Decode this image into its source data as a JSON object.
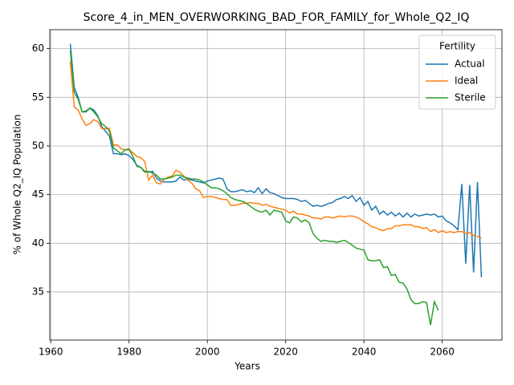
{
  "chart_data": {
    "type": "line",
    "title": "Score_4_in_MEN_OVERWORKING_BAD_FOR_FAMILY_for_Whole_Q2_IQ",
    "xlabel": "Years",
    "ylabel": "% of Whole Q2_IQ Population",
    "legend_title": "Fertility",
    "legend_position": "upper right",
    "grid": true,
    "xlim": [
      1959.75,
      2075.25
    ],
    "ylim": [
      30.05,
      61.95
    ],
    "xticks": [
      1960,
      1980,
      2000,
      2020,
      2040,
      2060
    ],
    "yticks": [
      35,
      40,
      45,
      50,
      55,
      60
    ],
    "x": [
      1965,
      1966,
      1967,
      1968,
      1969,
      1970,
      1971,
      1972,
      1973,
      1974,
      1975,
      1976,
      1977,
      1978,
      1979,
      1980,
      1981,
      1982,
      1983,
      1984,
      1985,
      1986,
      1987,
      1988,
      1989,
      1990,
      1991,
      1992,
      1993,
      1994,
      1995,
      1996,
      1997,
      1998,
      1999,
      2000,
      2001,
      2002,
      2003,
      2004,
      2005,
      2006,
      2007,
      2008,
      2009,
      2010,
      2011,
      2012,
      2013,
      2014,
      2015,
      2016,
      2017,
      2018,
      2019,
      2020,
      2021,
      2022,
      2023,
      2024,
      2025,
      2026,
      2027,
      2028,
      2029,
      2030,
      2031,
      2032,
      2033,
      2034,
      2035,
      2036,
      2037,
      2038,
      2039,
      2040,
      2041,
      2042,
      2043,
      2044,
      2045,
      2046,
      2047,
      2048,
      2049,
      2050,
      2051,
      2052,
      2053,
      2054,
      2055,
      2056,
      2057,
      2058,
      2059,
      2060,
      2061,
      2062,
      2063,
      2064,
      2065,
      2066,
      2067,
      2068,
      2069,
      2070
    ],
    "series": [
      {
        "name": "Actual",
        "color": "#1f77b4",
        "values": [
          60.5,
          56,
          55,
          53.5,
          53.5,
          53.9,
          53.7,
          53.1,
          52.0,
          51.5,
          51.0,
          49.2,
          49.2,
          49.1,
          49.2,
          49.0,
          48.6,
          48.0,
          47.8,
          47.4,
          47.3,
          47.4,
          46.7,
          46.4,
          46.3,
          46.3,
          46.3,
          46.4,
          46.8,
          46.5,
          46.6,
          46.5,
          46.4,
          46.3,
          46.2,
          46.4,
          46.5,
          46.6,
          46.7,
          46.6,
          45.6,
          45.3,
          45.3,
          45.4,
          45.5,
          45.3,
          45.4,
          45.2,
          45.7,
          45.1,
          45.6,
          45.2,
          45.1,
          44.9,
          44.7,
          44.6,
          44.6,
          44.6,
          44.5,
          44.3,
          44.4,
          44.1,
          43.8,
          43.9,
          43.8,
          43.9,
          44.1,
          44.2,
          44.5,
          44.6,
          44.8,
          44.6,
          44.9,
          44.3,
          44.7,
          43.9,
          44.3,
          43.4,
          43.8,
          43.0,
          43.3,
          42.9,
          43.2,
          42.8,
          43.1,
          42.7,
          43.1,
          42.7,
          43.0,
          42.8,
          42.9,
          43.0,
          42.9,
          43.0,
          42.7,
          42.8,
          42.3,
          42.1,
          41.8,
          41.4,
          46.1,
          37.9,
          46.0,
          37.0,
          46.3,
          36.5
        ]
      },
      {
        "name": "Ideal",
        "color": "#ff7f0e",
        "values": [
          58.7,
          54.0,
          53.7,
          52.8,
          52.1,
          52.3,
          52.7,
          52.5,
          51.8,
          51.8,
          51.8,
          50.1,
          50.1,
          49.7,
          49.6,
          49.6,
          49.3,
          48.9,
          48.8,
          48.4,
          46.5,
          47.0,
          46.2,
          46.1,
          46.6,
          46.8,
          46.9,
          47.5,
          47.3,
          46.9,
          46.5,
          46.2,
          45.6,
          45.4,
          44.7,
          44.8,
          44.8,
          44.7,
          44.6,
          44.5,
          44.5,
          43.9,
          43.9,
          44.0,
          44.1,
          44.1,
          44.2,
          44.1,
          44.1,
          43.9,
          44.0,
          43.8,
          43.7,
          43.6,
          43.5,
          43.4,
          43.1,
          43.3,
          43.0,
          43.0,
          42.9,
          42.8,
          42.6,
          42.6,
          42.5,
          42.7,
          42.7,
          42.6,
          42.7,
          42.8,
          42.7,
          42.8,
          42.8,
          42.7,
          42.5,
          42.2,
          42.0,
          41.7,
          41.6,
          41.4,
          41.3,
          41.5,
          41.5,
          41.8,
          41.8,
          41.9,
          41.9,
          41.9,
          41.7,
          41.7,
          41.5,
          41.6,
          41.2,
          41.4,
          41.1,
          41.3,
          41.1,
          41.2,
          41.1,
          41.2,
          41.2,
          41.0,
          41.1,
          40.8,
          40.7,
          40.5
        ]
      },
      {
        "name": "Sterile",
        "color": "#2ca02c",
        "values": [
          59.8,
          55.5,
          54.8,
          53.5,
          53.6,
          53.9,
          53.5,
          53.0,
          52.3,
          52.0,
          51.5,
          49.8,
          49.5,
          49.2,
          49.6,
          49.7,
          48.9,
          47.9,
          47.8,
          47.3,
          47.4,
          47.2,
          47.0,
          46.6,
          46.6,
          46.7,
          46.8,
          47.0,
          47.0,
          46.8,
          46.7,
          46.6,
          46.6,
          46.5,
          46.3,
          46.0,
          45.7,
          45.7,
          45.6,
          45.4,
          45.1,
          44.7,
          44.5,
          44.4,
          44.3,
          44.1,
          43.8,
          43.5,
          43.3,
          43.2,
          43.4,
          42.9,
          43.4,
          43.3,
          43.2,
          42.3,
          42.1,
          42.7,
          42.6,
          42.2,
          42.4,
          42.1,
          41.0,
          40.5,
          40.2,
          40.3,
          40.2,
          40.2,
          40.1,
          40.2,
          40.3,
          40.1,
          39.8,
          39.5,
          39.4,
          39.3,
          38.3,
          38.2,
          38.2,
          38.3,
          37.5,
          37.6,
          36.7,
          36.8,
          36.0,
          35.9,
          35.3,
          34.2,
          33.8,
          33.8,
          34.0,
          33.9,
          31.6,
          34.0,
          33.1,
          null,
          null,
          null,
          null,
          null,
          null,
          null,
          null,
          null,
          null,
          null
        ]
      }
    ]
  }
}
